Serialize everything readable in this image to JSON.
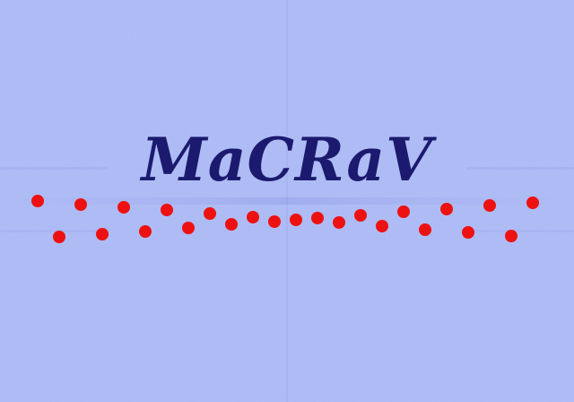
{
  "title": "MaCRaV",
  "colors": {
    "background": "#aab8f4",
    "title_text": "#1c1a6e",
    "dot": "#ee1111"
  }
}
